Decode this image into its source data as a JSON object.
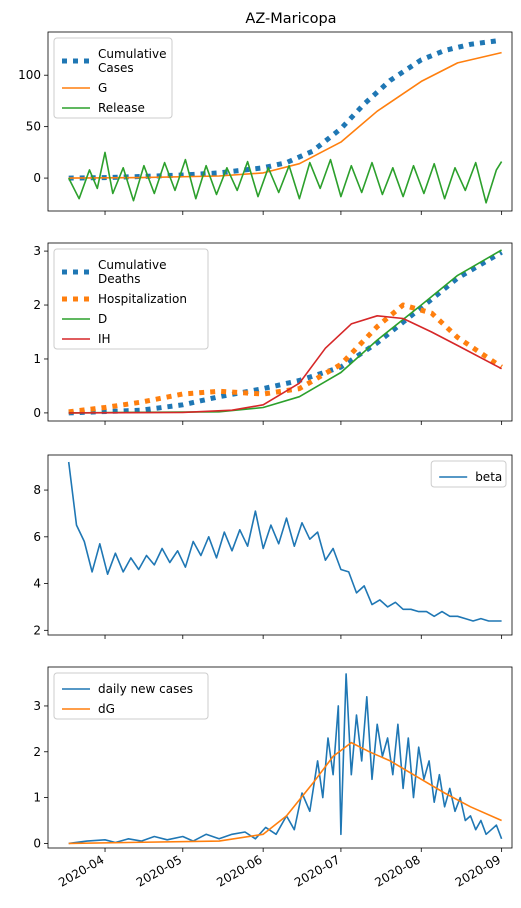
{
  "figure": {
    "title": "AZ-Maricopa",
    "x_ticks": [
      "2020-04",
      "2020-05",
      "2020-06",
      "2020-07",
      "2020-08",
      "2020-09"
    ],
    "x_tick_dates": [
      "2020-04-01",
      "2020-05-01",
      "2020-06-01",
      "2020-07-01",
      "2020-08-01",
      "2020-09-01"
    ],
    "x_range": [
      "2020-03-10",
      "2020-09-05"
    ]
  },
  "chart_data": [
    {
      "type": "line",
      "title": "AZ-Maricopa",
      "ylim": [
        -32,
        142
      ],
      "yticks": [
        0,
        50,
        100
      ],
      "legend_position": "upper-left",
      "series": [
        {
          "name": "Cumulative\nCases",
          "color": "#1f77b4",
          "style": "dotted-thick",
          "x": [
            "2020-03-18",
            "2020-04-01",
            "2020-04-15",
            "2020-05-01",
            "2020-05-15",
            "2020-06-01",
            "2020-06-10",
            "2020-06-20",
            "2020-07-01",
            "2020-07-10",
            "2020-07-20",
            "2020-08-01",
            "2020-08-10",
            "2020-08-20",
            "2020-09-01"
          ],
          "y": [
            0,
            0.5,
            1.5,
            3,
            5,
            10,
            15,
            26,
            48,
            72,
            95,
            115,
            124,
            130,
            134
          ]
        },
        {
          "name": "G",
          "color": "#ff7f0e",
          "style": "solid",
          "x": [
            "2020-03-18",
            "2020-04-15",
            "2020-05-15",
            "2020-06-01",
            "2020-06-15",
            "2020-07-01",
            "2020-07-15",
            "2020-08-01",
            "2020-08-15",
            "2020-09-01"
          ],
          "y": [
            0,
            0.5,
            2,
            5,
            14,
            35,
            65,
            94,
            112,
            122
          ]
        },
        {
          "name": "Release",
          "color": "#2ca02c",
          "style": "solid",
          "x": [
            "2020-03-18",
            "2020-03-22",
            "2020-03-26",
            "2020-03-29",
            "2020-04-01",
            "2020-04-04",
            "2020-04-08",
            "2020-04-12",
            "2020-04-16",
            "2020-04-20",
            "2020-04-24",
            "2020-04-28",
            "2020-05-02",
            "2020-05-06",
            "2020-05-10",
            "2020-05-14",
            "2020-05-18",
            "2020-05-22",
            "2020-05-26",
            "2020-05-30",
            "2020-06-03",
            "2020-06-07",
            "2020-06-11",
            "2020-06-15",
            "2020-06-19",
            "2020-06-23",
            "2020-06-27",
            "2020-07-01",
            "2020-07-05",
            "2020-07-09",
            "2020-07-13",
            "2020-07-17",
            "2020-07-21",
            "2020-07-25",
            "2020-07-29",
            "2020-08-02",
            "2020-08-06",
            "2020-08-10",
            "2020-08-14",
            "2020-08-18",
            "2020-08-22",
            "2020-08-26",
            "2020-08-30",
            "2020-09-01"
          ],
          "y": [
            0,
            -20,
            8,
            -10,
            25,
            -15,
            10,
            -22,
            12,
            -15,
            15,
            -12,
            18,
            -20,
            12,
            -16,
            10,
            -12,
            16,
            -18,
            10,
            -14,
            12,
            -20,
            15,
            -10,
            18,
            -18,
            12,
            -14,
            15,
            -16,
            10,
            -18,
            12,
            -15,
            14,
            -20,
            10,
            -12,
            15,
            -24,
            8,
            16
          ]
        }
      ]
    },
    {
      "type": "line",
      "ylim": [
        -0.15,
        3.15
      ],
      "yticks": [
        0,
        1,
        2,
        3
      ],
      "legend_position": "upper-left",
      "series": [
        {
          "name": "Cumulative\nDeaths",
          "color": "#1f77b4",
          "style": "dotted-thick",
          "x": [
            "2020-03-18",
            "2020-04-15",
            "2020-05-01",
            "2020-05-15",
            "2020-06-01",
            "2020-06-15",
            "2020-07-01",
            "2020-07-15",
            "2020-08-01",
            "2020-08-15",
            "2020-09-01"
          ],
          "y": [
            0,
            0.05,
            0.15,
            0.3,
            0.45,
            0.6,
            0.85,
            1.3,
            1.95,
            2.5,
            2.98
          ]
        },
        {
          "name": "Hospitalization",
          "color": "#ff7f0e",
          "style": "dotted-thick",
          "x": [
            "2020-03-18",
            "2020-04-01",
            "2020-04-15",
            "2020-05-01",
            "2020-05-15",
            "2020-06-01",
            "2020-06-15",
            "2020-07-01",
            "2020-07-15",
            "2020-07-25",
            "2020-08-05",
            "2020-08-15",
            "2020-09-01"
          ],
          "y": [
            0.02,
            0.1,
            0.2,
            0.35,
            0.4,
            0.35,
            0.45,
            0.9,
            1.6,
            2.0,
            1.85,
            1.4,
            0.85
          ]
        },
        {
          "name": "D",
          "color": "#2ca02c",
          "style": "solid",
          "x": [
            "2020-03-18",
            "2020-05-15",
            "2020-06-01",
            "2020-06-15",
            "2020-07-01",
            "2020-07-15",
            "2020-08-01",
            "2020-08-15",
            "2020-09-01"
          ],
          "y": [
            0,
            0.02,
            0.1,
            0.3,
            0.75,
            1.35,
            2.0,
            2.55,
            3.02
          ]
        },
        {
          "name": "IH",
          "color": "#d62728",
          "style": "solid",
          "x": [
            "2020-03-18",
            "2020-05-01",
            "2020-05-20",
            "2020-06-01",
            "2020-06-15",
            "2020-06-25",
            "2020-07-05",
            "2020-07-15",
            "2020-07-25",
            "2020-08-05",
            "2020-08-15",
            "2020-09-01"
          ],
          "y": [
            0,
            0.01,
            0.05,
            0.15,
            0.55,
            1.2,
            1.65,
            1.8,
            1.75,
            1.5,
            1.25,
            0.82
          ]
        }
      ]
    },
    {
      "type": "line",
      "ylim": [
        1.8,
        9.5
      ],
      "yticks": [
        2,
        4,
        6,
        8
      ],
      "legend_position": "upper-right",
      "series": [
        {
          "name": "beta",
          "color": "#1f77b4",
          "style": "solid",
          "x": [
            "2020-03-18",
            "2020-03-21",
            "2020-03-24",
            "2020-03-27",
            "2020-03-30",
            "2020-04-02",
            "2020-04-05",
            "2020-04-08",
            "2020-04-11",
            "2020-04-14",
            "2020-04-17",
            "2020-04-20",
            "2020-04-23",
            "2020-04-26",
            "2020-04-29",
            "2020-05-02",
            "2020-05-05",
            "2020-05-08",
            "2020-05-11",
            "2020-05-14",
            "2020-05-17",
            "2020-05-20",
            "2020-05-23",
            "2020-05-26",
            "2020-05-29",
            "2020-06-01",
            "2020-06-04",
            "2020-06-07",
            "2020-06-10",
            "2020-06-13",
            "2020-06-16",
            "2020-06-19",
            "2020-06-22",
            "2020-06-25",
            "2020-06-28",
            "2020-07-01",
            "2020-07-04",
            "2020-07-07",
            "2020-07-10",
            "2020-07-13",
            "2020-07-16",
            "2020-07-19",
            "2020-07-22",
            "2020-07-25",
            "2020-07-28",
            "2020-07-31",
            "2020-08-03",
            "2020-08-06",
            "2020-08-09",
            "2020-08-12",
            "2020-08-15",
            "2020-08-18",
            "2020-08-21",
            "2020-08-24",
            "2020-08-27",
            "2020-08-30",
            "2020-09-01"
          ],
          "y": [
            9.2,
            6.5,
            5.8,
            4.5,
            5.7,
            4.4,
            5.3,
            4.5,
            5.1,
            4.6,
            5.2,
            4.8,
            5.5,
            4.9,
            5.4,
            4.7,
            5.8,
            5.2,
            6.0,
            5.1,
            6.2,
            5.4,
            6.3,
            5.6,
            7.1,
            5.5,
            6.5,
            5.7,
            6.8,
            5.6,
            6.6,
            5.9,
            6.2,
            5.0,
            5.5,
            4.6,
            4.5,
            3.6,
            3.9,
            3.1,
            3.3,
            3.0,
            3.2,
            2.9,
            2.9,
            2.8,
            2.8,
            2.6,
            2.8,
            2.6,
            2.6,
            2.5,
            2.4,
            2.5,
            2.4,
            2.4,
            2.4
          ]
        }
      ]
    },
    {
      "type": "line",
      "ylim": [
        -0.1,
        3.85
      ],
      "yticks": [
        0,
        1,
        2,
        3
      ],
      "legend_position": "upper-left",
      "series": [
        {
          "name": "daily new cases",
          "color": "#1f77b4",
          "style": "solid",
          "x": [
            "2020-03-18",
            "2020-03-25",
            "2020-04-01",
            "2020-04-05",
            "2020-04-10",
            "2020-04-15",
            "2020-04-20",
            "2020-04-25",
            "2020-05-01",
            "2020-05-05",
            "2020-05-10",
            "2020-05-15",
            "2020-05-20",
            "2020-05-25",
            "2020-05-29",
            "2020-06-02",
            "2020-06-06",
            "2020-06-10",
            "2020-06-13",
            "2020-06-16",
            "2020-06-19",
            "2020-06-22",
            "2020-06-24",
            "2020-06-26",
            "2020-06-28",
            "2020-06-30",
            "2020-07-01",
            "2020-07-03",
            "2020-07-05",
            "2020-07-07",
            "2020-07-09",
            "2020-07-11",
            "2020-07-13",
            "2020-07-15",
            "2020-07-17",
            "2020-07-19",
            "2020-07-21",
            "2020-07-23",
            "2020-07-25",
            "2020-07-27",
            "2020-07-29",
            "2020-07-31",
            "2020-08-02",
            "2020-08-04",
            "2020-08-06",
            "2020-08-08",
            "2020-08-10",
            "2020-08-12",
            "2020-08-14",
            "2020-08-16",
            "2020-08-18",
            "2020-08-20",
            "2020-08-22",
            "2020-08-24",
            "2020-08-26",
            "2020-08-28",
            "2020-08-30",
            "2020-09-01"
          ],
          "y": [
            0,
            0.05,
            0.08,
            0.02,
            0.1,
            0.05,
            0.15,
            0.08,
            0.15,
            0.05,
            0.2,
            0.1,
            0.2,
            0.25,
            0.1,
            0.35,
            0.2,
            0.6,
            0.3,
            1.1,
            0.7,
            1.8,
            1.0,
            2.3,
            1.5,
            3.0,
            0.2,
            3.7,
            1.5,
            2.8,
            1.8,
            3.2,
            1.4,
            2.6,
            1.9,
            2.3,
            1.5,
            2.6,
            1.2,
            2.3,
            1.0,
            2.1,
            1.4,
            1.8,
            0.9,
            1.5,
            0.8,
            1.2,
            0.7,
            1.0,
            0.5,
            0.6,
            0.3,
            0.5,
            0.2,
            0.3,
            0.4,
            0.1
          ]
        },
        {
          "name": "dG",
          "color": "#ff7f0e",
          "style": "solid",
          "x": [
            "2020-03-18",
            "2020-05-15",
            "2020-06-01",
            "2020-06-10",
            "2020-06-20",
            "2020-06-28",
            "2020-07-05",
            "2020-07-12",
            "2020-07-20",
            "2020-08-01",
            "2020-08-10",
            "2020-08-20",
            "2020-09-01"
          ],
          "y": [
            0,
            0.05,
            0.2,
            0.6,
            1.3,
            1.9,
            2.2,
            2.0,
            1.8,
            1.4,
            1.1,
            0.8,
            0.5
          ]
        }
      ]
    }
  ]
}
